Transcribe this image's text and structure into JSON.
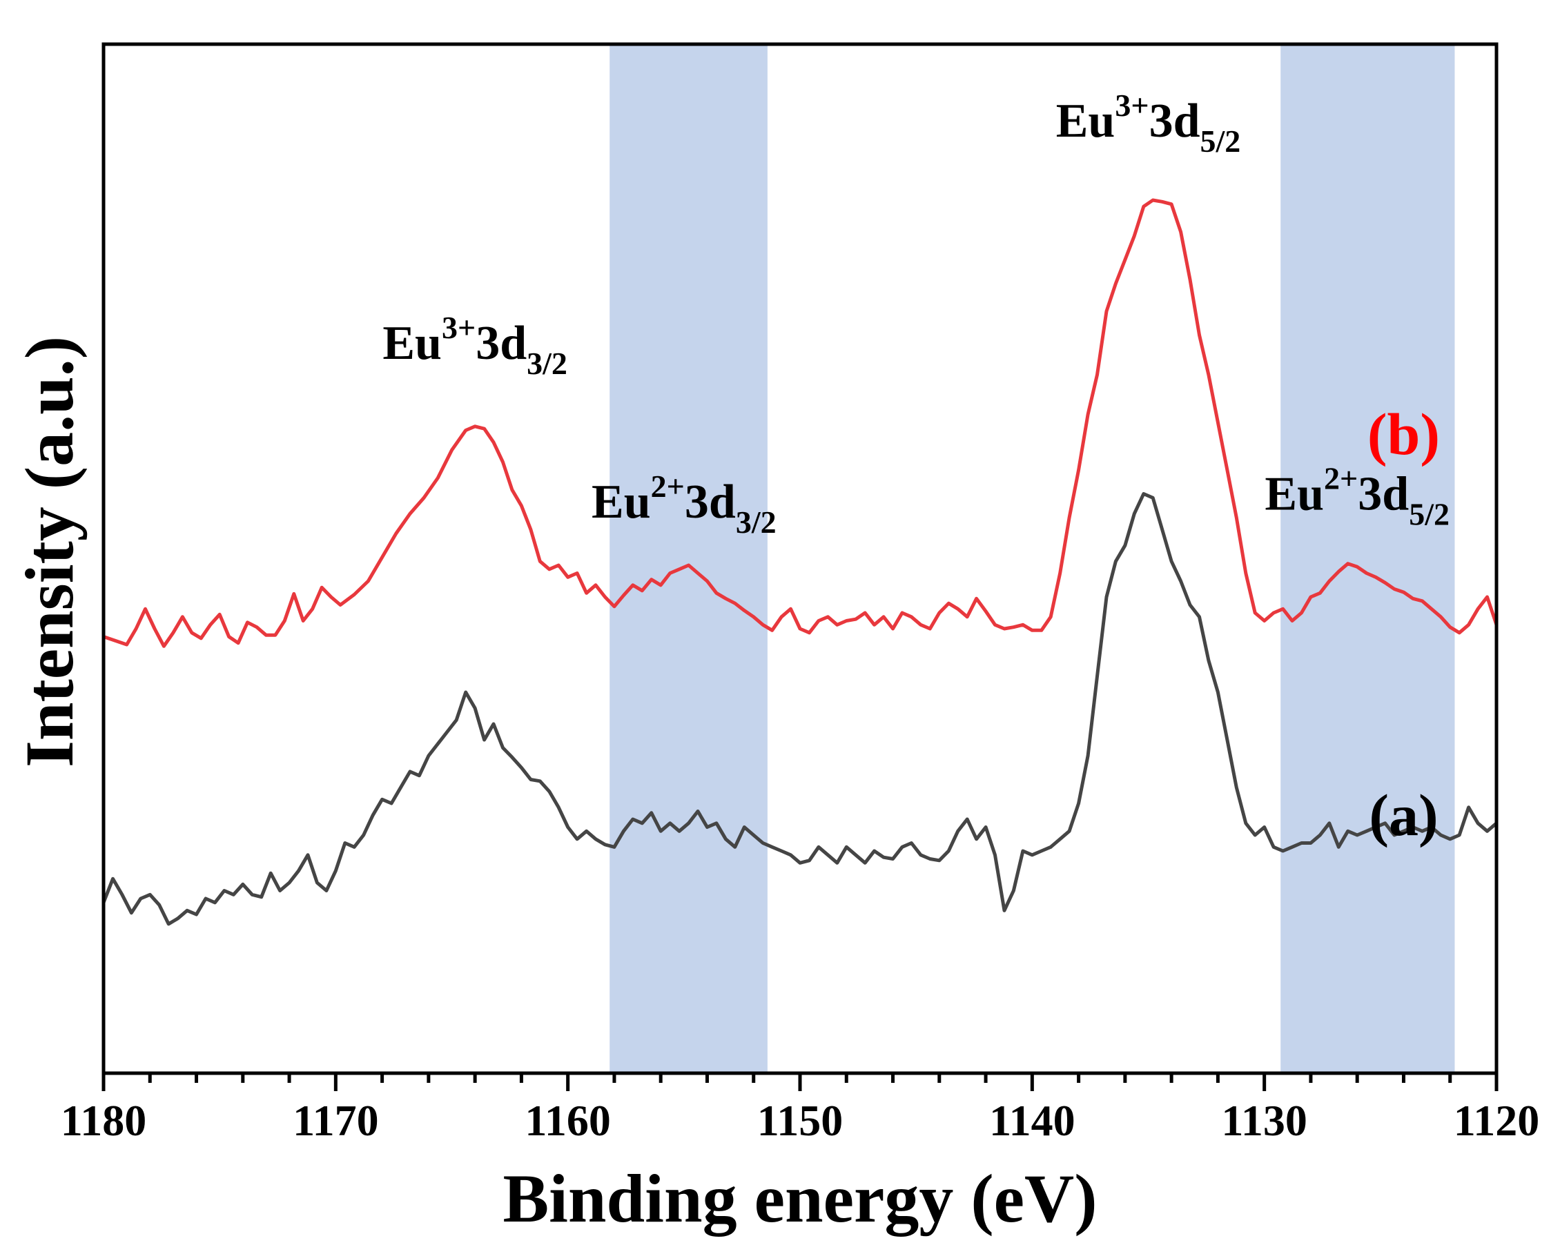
{
  "chart_data": {
    "type": "line",
    "title": "",
    "xlabel": "Binding energy (eV)",
    "ylabel": "Intensity (a.u.)",
    "xlim": [
      1180,
      1120
    ],
    "ylim": [
      0,
      100
    ],
    "x_reversed": true,
    "xticks": [
      1180,
      1170,
      1160,
      1150,
      1140,
      1130,
      1120
    ],
    "grid": false,
    "highlight_bands": [
      {
        "range": [
          1158.2,
          1151.4
        ],
        "color": "#c5d4ec"
      },
      {
        "range": [
          1129.3,
          1121.8
        ],
        "color": "#c5d4ec"
      }
    ],
    "series": [
      {
        "name": "(b)",
        "color": "#e8383d",
        "label_color": "#ff0000",
        "label_anchor": [
          1124,
          68
        ],
        "points": [
          [
            1180,
            45
          ],
          [
            1179.5,
            44.5
          ],
          [
            1179,
            44
          ],
          [
            1178.6,
            46
          ],
          [
            1178.2,
            48.5
          ],
          [
            1177.8,
            46
          ],
          [
            1177.4,
            43.8
          ],
          [
            1177,
            45.5
          ],
          [
            1176.6,
            47.5
          ],
          [
            1176.2,
            45.5
          ],
          [
            1175.8,
            44.8
          ],
          [
            1175.4,
            46.5
          ],
          [
            1175,
            47.8
          ],
          [
            1174.6,
            45
          ],
          [
            1174.2,
            44.2
          ],
          [
            1173.8,
            46.8
          ],
          [
            1173.4,
            46.2
          ],
          [
            1173,
            45.2
          ],
          [
            1172.6,
            45.2
          ],
          [
            1172.2,
            47
          ],
          [
            1171.8,
            50.4
          ],
          [
            1171.4,
            47
          ],
          [
            1171,
            48.5
          ],
          [
            1170.6,
            51.2
          ],
          [
            1170.2,
            50
          ],
          [
            1169.8,
            49
          ],
          [
            1169.2,
            50.3
          ],
          [
            1168.6,
            52
          ],
          [
            1168,
            55
          ],
          [
            1167.4,
            58
          ],
          [
            1166.8,
            60.5
          ],
          [
            1166.2,
            62.5
          ],
          [
            1165.6,
            65
          ],
          [
            1165,
            68.5
          ],
          [
            1164.4,
            71
          ],
          [
            1164,
            71.5
          ],
          [
            1163.6,
            71.2
          ],
          [
            1163.2,
            69.5
          ],
          [
            1162.8,
            67
          ],
          [
            1162.4,
            63.5
          ],
          [
            1162,
            61.5
          ],
          [
            1161.6,
            58.5
          ],
          [
            1161.2,
            54.5
          ],
          [
            1160.8,
            53.5
          ],
          [
            1160.4,
            54
          ],
          [
            1160,
            52.5
          ],
          [
            1159.6,
            53
          ],
          [
            1159.2,
            50.5
          ],
          [
            1158.8,
            51.5
          ],
          [
            1158.4,
            50
          ],
          [
            1158,
            48.8
          ],
          [
            1157.6,
            50.2
          ],
          [
            1157.2,
            51.5
          ],
          [
            1156.8,
            50.8
          ],
          [
            1156.4,
            52.2
          ],
          [
            1156,
            51.5
          ],
          [
            1155.6,
            53
          ],
          [
            1155.2,
            53.5
          ],
          [
            1154.8,
            54
          ],
          [
            1154.4,
            53
          ],
          [
            1154,
            52
          ],
          [
            1153.6,
            50.5
          ],
          [
            1153.2,
            49.8
          ],
          [
            1152.8,
            49.2
          ],
          [
            1152.4,
            48.3
          ],
          [
            1152,
            47.5
          ],
          [
            1151.6,
            46.5
          ],
          [
            1151.2,
            45.8
          ],
          [
            1150.8,
            47.5
          ],
          [
            1150.4,
            48.5
          ],
          [
            1150,
            46
          ],
          [
            1149.6,
            45.5
          ],
          [
            1149.2,
            47
          ],
          [
            1148.8,
            47.5
          ],
          [
            1148.4,
            46.5
          ],
          [
            1148,
            47
          ],
          [
            1147.6,
            47.2
          ],
          [
            1147.2,
            48
          ],
          [
            1146.8,
            46.5
          ],
          [
            1146.4,
            47.5
          ],
          [
            1146,
            46
          ],
          [
            1145.6,
            48
          ],
          [
            1145.2,
            47.5
          ],
          [
            1144.8,
            46.5
          ],
          [
            1144.4,
            46
          ],
          [
            1144,
            48
          ],
          [
            1143.6,
            49.2
          ],
          [
            1143.2,
            48.5
          ],
          [
            1142.8,
            47.5
          ],
          [
            1142.4,
            49.8
          ],
          [
            1142,
            48.2
          ],
          [
            1141.6,
            46.5
          ],
          [
            1141.2,
            46
          ],
          [
            1140.8,
            46.2
          ],
          [
            1140.4,
            46.5
          ],
          [
            1140,
            45.8
          ],
          [
            1139.6,
            45.8
          ],
          [
            1139.2,
            47.5
          ],
          [
            1138.8,
            53
          ],
          [
            1138.4,
            60
          ],
          [
            1138,
            66
          ],
          [
            1137.6,
            73
          ],
          [
            1137.2,
            78
          ],
          [
            1136.8,
            86
          ],
          [
            1136.4,
            89.5
          ],
          [
            1136,
            92.5
          ],
          [
            1135.6,
            95.5
          ],
          [
            1135.2,
            99.2
          ],
          [
            1134.8,
            100
          ],
          [
            1134.4,
            99.8
          ],
          [
            1134,
            99.5
          ],
          [
            1133.6,
            96
          ],
          [
            1133.2,
            90
          ],
          [
            1132.8,
            83
          ],
          [
            1132.4,
            78
          ],
          [
            1132,
            72
          ],
          [
            1131.6,
            66
          ],
          [
            1131.2,
            60
          ],
          [
            1130.8,
            53
          ],
          [
            1130.4,
            48
          ],
          [
            1130,
            47
          ],
          [
            1129.6,
            48
          ],
          [
            1129.2,
            48.5
          ],
          [
            1128.8,
            47
          ],
          [
            1128.4,
            48
          ],
          [
            1128,
            50
          ],
          [
            1127.6,
            50.5
          ],
          [
            1127.2,
            52
          ],
          [
            1126.8,
            53.2
          ],
          [
            1126.4,
            54.2
          ],
          [
            1126,
            53.8
          ],
          [
            1125.6,
            53
          ],
          [
            1125.2,
            52.5
          ],
          [
            1124.8,
            51.8
          ],
          [
            1124.4,
            51
          ],
          [
            1124,
            50.6
          ],
          [
            1123.6,
            49.8
          ],
          [
            1123.2,
            49.5
          ],
          [
            1122.8,
            48.5
          ],
          [
            1122.4,
            47.5
          ],
          [
            1122,
            46.2
          ],
          [
            1121.6,
            45.5
          ],
          [
            1121.2,
            46.5
          ],
          [
            1120.8,
            48.5
          ],
          [
            1120.4,
            50
          ],
          [
            1120,
            46.5
          ]
        ]
      },
      {
        "name": "(a)",
        "color": "#454545",
        "label_color": "#000000",
        "label_anchor": [
          1124,
          20
        ],
        "points": [
          [
            1180,
            11.5
          ],
          [
            1179.6,
            14.5
          ],
          [
            1179.2,
            12.5
          ],
          [
            1178.8,
            10.2
          ],
          [
            1178.4,
            12
          ],
          [
            1178,
            12.5
          ],
          [
            1177.6,
            11.2
          ],
          [
            1177.2,
            8.8
          ],
          [
            1176.8,
            9.5
          ],
          [
            1176.4,
            10.5
          ],
          [
            1176,
            10
          ],
          [
            1175.6,
            12
          ],
          [
            1175.2,
            11.5
          ],
          [
            1174.8,
            13
          ],
          [
            1174.4,
            12.5
          ],
          [
            1174,
            13.8
          ],
          [
            1173.6,
            12.5
          ],
          [
            1173.2,
            12.2
          ],
          [
            1172.8,
            15.2
          ],
          [
            1172.4,
            13
          ],
          [
            1172,
            14
          ],
          [
            1171.6,
            15.5
          ],
          [
            1171.2,
            17.5
          ],
          [
            1170.8,
            14
          ],
          [
            1170.4,
            13
          ],
          [
            1170,
            15.5
          ],
          [
            1169.6,
            19
          ],
          [
            1169.2,
            18.5
          ],
          [
            1168.8,
            20
          ],
          [
            1168.4,
            22.5
          ],
          [
            1168,
            24.5
          ],
          [
            1167.6,
            24
          ],
          [
            1167.2,
            26
          ],
          [
            1166.8,
            28
          ],
          [
            1166.4,
            27.5
          ],
          [
            1166,
            30
          ],
          [
            1165.6,
            31.5
          ],
          [
            1165.2,
            33
          ],
          [
            1164.8,
            34.5
          ],
          [
            1164.4,
            38
          ],
          [
            1164,
            36
          ],
          [
            1163.6,
            32
          ],
          [
            1163.2,
            34
          ],
          [
            1162.8,
            31
          ],
          [
            1162.4,
            29.8
          ],
          [
            1162,
            28.5
          ],
          [
            1161.6,
            27
          ],
          [
            1161.2,
            26.8
          ],
          [
            1160.8,
            25.5
          ],
          [
            1160.4,
            23.5
          ],
          [
            1160,
            21
          ],
          [
            1159.6,
            19.5
          ],
          [
            1159.2,
            20.5
          ],
          [
            1158.8,
            19.5
          ],
          [
            1158.4,
            18.8
          ],
          [
            1158,
            18.5
          ],
          [
            1157.6,
            20.5
          ],
          [
            1157.2,
            22
          ],
          [
            1156.8,
            21.5
          ],
          [
            1156.4,
            22.8
          ],
          [
            1156,
            20.5
          ],
          [
            1155.6,
            21.5
          ],
          [
            1155.2,
            20.5
          ],
          [
            1154.8,
            21.5
          ],
          [
            1154.4,
            23
          ],
          [
            1154,
            21
          ],
          [
            1153.6,
            21.5
          ],
          [
            1153.2,
            19.5
          ],
          [
            1152.8,
            18.5
          ],
          [
            1152.4,
            21
          ],
          [
            1152,
            20
          ],
          [
            1151.6,
            19
          ],
          [
            1151.2,
            18.5
          ],
          [
            1150.8,
            18
          ],
          [
            1150.4,
            17.5
          ],
          [
            1150,
            16.5
          ],
          [
            1149.6,
            16.8
          ],
          [
            1149.2,
            18.5
          ],
          [
            1148.8,
            17.5
          ],
          [
            1148.4,
            16.5
          ],
          [
            1148,
            18.5
          ],
          [
            1147.6,
            17.5
          ],
          [
            1147.2,
            16.5
          ],
          [
            1146.8,
            18
          ],
          [
            1146.4,
            17.2
          ],
          [
            1146,
            17
          ],
          [
            1145.6,
            18.5
          ],
          [
            1145.2,
            19
          ],
          [
            1144.8,
            17.5
          ],
          [
            1144.4,
            17
          ],
          [
            1144,
            16.8
          ],
          [
            1143.6,
            18
          ],
          [
            1143.2,
            20.5
          ],
          [
            1142.8,
            22
          ],
          [
            1142.4,
            19.5
          ],
          [
            1142,
            21
          ],
          [
            1141.6,
            17.5
          ],
          [
            1141.2,
            10.5
          ],
          [
            1140.8,
            13
          ],
          [
            1140.4,
            18
          ],
          [
            1140,
            17.5
          ],
          [
            1139.6,
            18
          ],
          [
            1139.2,
            18.5
          ],
          [
            1138.8,
            19.5
          ],
          [
            1138.4,
            20.5
          ],
          [
            1138,
            24
          ],
          [
            1137.6,
            30
          ],
          [
            1137.2,
            40
          ],
          [
            1136.8,
            50
          ],
          [
            1136.4,
            54.5
          ],
          [
            1136,
            56.5
          ],
          [
            1135.6,
            60.5
          ],
          [
            1135.2,
            63
          ],
          [
            1134.8,
            62.5
          ],
          [
            1134.4,
            58.5
          ],
          [
            1134,
            54.5
          ],
          [
            1133.6,
            52
          ],
          [
            1133.2,
            49
          ],
          [
            1132.8,
            47.5
          ],
          [
            1132.4,
            42
          ],
          [
            1132,
            38
          ],
          [
            1131.6,
            32
          ],
          [
            1131.2,
            26
          ],
          [
            1130.8,
            21.5
          ],
          [
            1130.4,
            20
          ],
          [
            1130,
            21
          ],
          [
            1129.6,
            18.5
          ],
          [
            1129.2,
            18
          ],
          [
            1128.8,
            18.5
          ],
          [
            1128.4,
            19
          ],
          [
            1128,
            19
          ],
          [
            1127.6,
            20
          ],
          [
            1127.2,
            21.5
          ],
          [
            1126.8,
            18.5
          ],
          [
            1126.4,
            20.5
          ],
          [
            1126,
            20
          ],
          [
            1125.6,
            20.5
          ],
          [
            1125.2,
            21
          ],
          [
            1124.8,
            21.5
          ],
          [
            1124.4,
            20
          ],
          [
            1124,
            20.5
          ],
          [
            1123.6,
            21
          ],
          [
            1123.2,
            20.5
          ],
          [
            1122.8,
            21
          ],
          [
            1122.4,
            20
          ],
          [
            1122,
            19.5
          ],
          [
            1121.6,
            20
          ],
          [
            1121.2,
            23.5
          ],
          [
            1120.8,
            21.5
          ],
          [
            1120.4,
            20.5
          ],
          [
            1120,
            21.5
          ]
        ]
      }
    ],
    "annotations": [
      {
        "base": "Eu",
        "sup": "3+",
        "mid": "3d",
        "sub": "3/2",
        "at": [
          1164,
          80
        ]
      },
      {
        "base": "Eu",
        "sup": "2+",
        "mid": "3d",
        "sub": "3/2",
        "at": [
          1155,
          60
        ]
      },
      {
        "base": "Eu",
        "sup": "3+",
        "mid": "3d",
        "sub": "5/2",
        "at": [
          1135,
          108
        ]
      },
      {
        "base": "Eu",
        "sup": "2+",
        "mid": "3d",
        "sub": "5/2",
        "at": [
          1126,
          61
        ]
      }
    ]
  }
}
